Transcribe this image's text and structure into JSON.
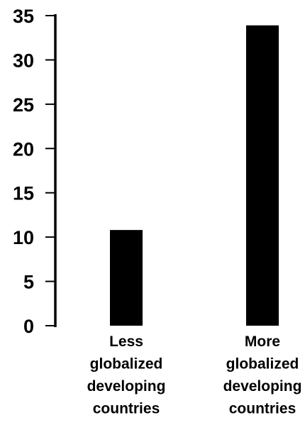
{
  "chart_data": {
    "type": "bar",
    "categories": [
      [
        "Less",
        "globalized",
        "developing",
        "countries"
      ],
      [
        "More",
        "globalized",
        "developing",
        "countries"
      ]
    ],
    "values": [
      10.8,
      33.9
    ],
    "ylim": [
      0,
      35
    ],
    "yticks": [
      "0",
      "5",
      "10",
      "15",
      "20",
      "25",
      "30",
      "35"
    ],
    "bar_color": "#000000",
    "grid": false,
    "legend": "none"
  }
}
